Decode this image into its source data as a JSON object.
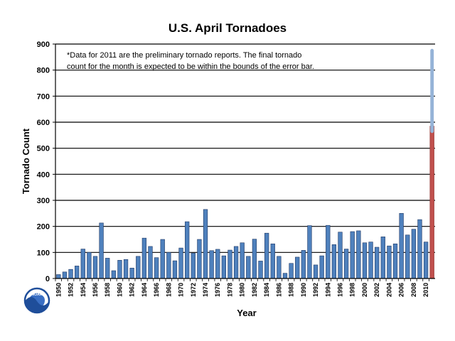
{
  "chart_data": {
    "type": "bar",
    "title": "U.S. April Tornadoes",
    "xlabel": "Year",
    "ylabel": "Tornado Count",
    "ylim": [
      0,
      900
    ],
    "yticks": [
      0,
      100,
      200,
      300,
      400,
      500,
      600,
      700,
      800,
      900
    ],
    "grid": true,
    "annotation": [
      "*Data for 2011 are the preliminary tornado reports. The final tornado",
      "count for the month is expected to be within the bounds of the error bar."
    ],
    "x": [
      1950,
      1951,
      1952,
      1953,
      1954,
      1955,
      1956,
      1957,
      1958,
      1959,
      1960,
      1961,
      1962,
      1963,
      1964,
      1965,
      1966,
      1967,
      1968,
      1969,
      1970,
      1971,
      1972,
      1973,
      1974,
      1975,
      1976,
      1977,
      1978,
      1979,
      1980,
      1981,
      1982,
      1983,
      1984,
      1985,
      1986,
      1987,
      1988,
      1989,
      1990,
      1991,
      1992,
      1993,
      1994,
      1995,
      1996,
      1997,
      1998,
      1999,
      2000,
      2001,
      2002,
      2003,
      2004,
      2005,
      2006,
      2007,
      2008,
      2009,
      2010,
      2011
    ],
    "xtick_labels": [
      "1950",
      "1952",
      "1954",
      "1956",
      "1958",
      "1960",
      "1962",
      "1964",
      "1966",
      "1968",
      "1970",
      "1972",
      "1974",
      "1976",
      "1978",
      "1980",
      "1982",
      "1984",
      "1986",
      "1988",
      "1990",
      "1992",
      "1994",
      "1996",
      "1998",
      "2000",
      "2002",
      "2004",
      "2006",
      "2008",
      "2010"
    ],
    "values": [
      15,
      25,
      35,
      48,
      113,
      100,
      85,
      213,
      78,
      30,
      70,
      73,
      40,
      85,
      155,
      123,
      80,
      150,
      100,
      68,
      117,
      218,
      97,
      150,
      265,
      107,
      112,
      87,
      109,
      123,
      137,
      85,
      151,
      67,
      174,
      133,
      85,
      20,
      58,
      82,
      108,
      203,
      52,
      87,
      204,
      130,
      178,
      113,
      180,
      183,
      137,
      140,
      120,
      160,
      125,
      133,
      250,
      167,
      189,
      226,
      140,
      585
    ],
    "highlight": {
      "year": 2011,
      "color": "#c0504d",
      "error_bar_low": 565,
      "error_bar_high": 875,
      "error_bar_color": "#95b3d7"
    },
    "bar_color": "#4f81bd",
    "bar_edge_color": "#1f3864"
  },
  "logo": {
    "icon": "noaa-logo-icon",
    "text": "NOAA"
  }
}
